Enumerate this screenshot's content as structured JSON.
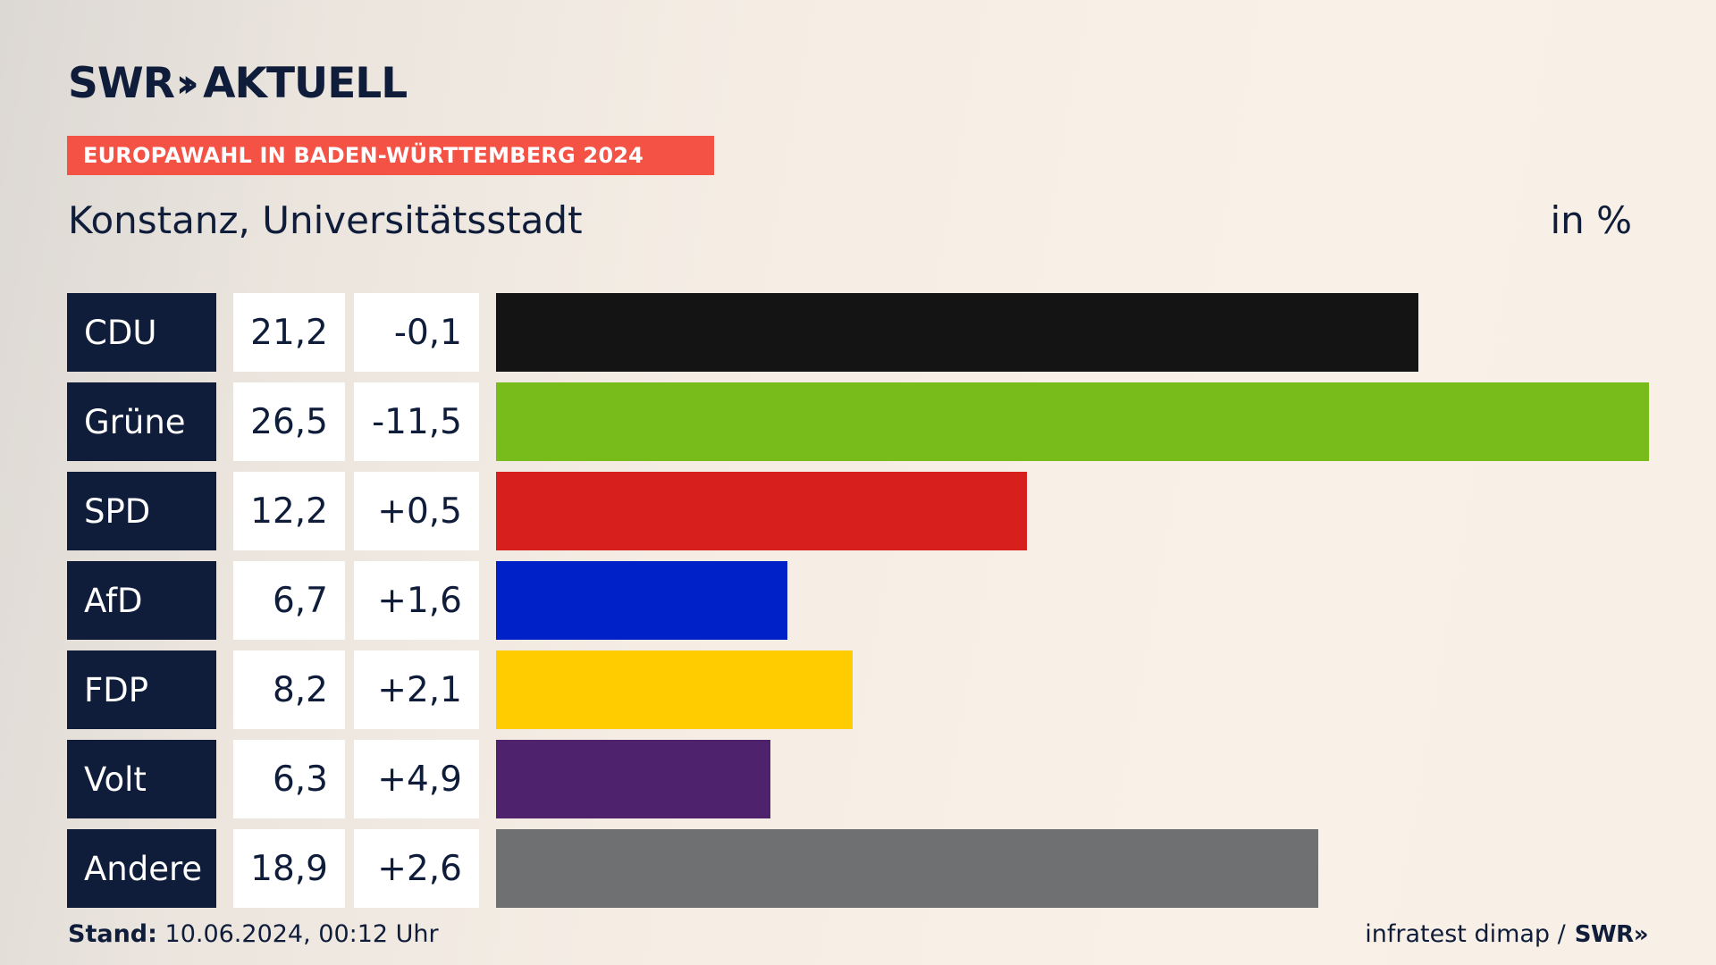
{
  "brand": {
    "logo_left": "SWR",
    "logo_chevron": "»",
    "logo_right": "AKTUELL"
  },
  "banner": "EUROPAWAHL IN BADEN-WÜRTTEMBERG 2024",
  "subtitle": "Konstanz, Universitätsstadt",
  "unit_label": "in %",
  "footer": {
    "stand_label": "Stand:",
    "stand_value": "10.06.2024, 00:12 Uhr",
    "source": "infratest dimap /",
    "source_logo": "SWR»"
  },
  "chart_data": {
    "type": "bar",
    "orientation": "horizontal",
    "categories": [
      "CDU",
      "Grüne",
      "SPD",
      "AfD",
      "FDP",
      "Volt",
      "Andere"
    ],
    "values": [
      21.2,
      26.5,
      12.2,
      6.7,
      8.2,
      6.3,
      18.9
    ],
    "value_labels": [
      "21,2",
      "26,5",
      "12,2",
      "6,7",
      "8,2",
      "6,3",
      "18,9"
    ],
    "diff_labels": [
      "-0,1",
      "-11,5",
      "+0,5",
      "+1,6",
      "+2,1",
      "+4,9",
      "+2,6"
    ],
    "diffs": [
      -0.1,
      -11.5,
      0.5,
      1.6,
      2.1,
      4.9,
      2.6
    ],
    "colors": [
      "#141414",
      "#78bc1b",
      "#d71f1d",
      "#0021c8",
      "#ffcc00",
      "#4f226d",
      "#6f7072"
    ],
    "title": "Konstanz, Universitätsstadt",
    "unit": "in %",
    "xlim": [
      0,
      26.5
    ]
  }
}
